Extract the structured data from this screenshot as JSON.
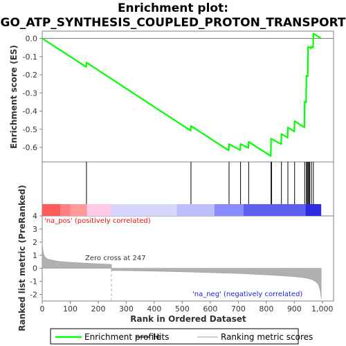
{
  "chart_data": {
    "type": "line",
    "title_line1": "Enrichment plot:",
    "title_line2": "GO_ATP_SYNTHESIS_COUPLED_PROTON_TRANSPORT",
    "es_panel": {
      "ylabel": "Enrichment score (ES)",
      "ylim": [
        -0.68,
        0.04
      ],
      "yticks": [
        0.0,
        -0.1,
        -0.2,
        -0.3,
        -0.4,
        -0.5,
        -0.6
      ],
      "ytick_labels": [
        "0.0",
        "-0.1",
        "-0.2",
        "-0.3",
        "-0.4",
        "-0.5",
        "-0.6"
      ],
      "series": [
        {
          "name": "Enrichment profile",
          "color": "#00ff00",
          "x": [
            0,
            157,
            158,
            530,
            531,
            666,
            667,
            707,
            708,
            736,
            737,
            816,
            817,
            853,
            854,
            876,
            877,
            900,
            901,
            936,
            937,
            942,
            943,
            948,
            949,
            953,
            954,
            960,
            961,
            967,
            968,
            996
          ],
          "y": [
            0.0,
            -0.157,
            -0.133,
            -0.508,
            -0.482,
            -0.617,
            -0.582,
            -0.615,
            -0.581,
            -0.603,
            -0.569,
            -0.648,
            -0.552,
            -0.582,
            -0.526,
            -0.546,
            -0.49,
            -0.513,
            -0.455,
            -0.49,
            -0.348,
            -0.352,
            -0.205,
            -0.208,
            -0.047,
            -0.05,
            -0.047,
            -0.055,
            -0.045,
            -0.05,
            0.027,
            0.0
          ]
        }
      ]
    },
    "hits": {
      "name": "Hits",
      "color": "#000000",
      "positions": [
        158,
        531,
        667,
        708,
        737,
        817,
        819,
        854,
        877,
        901,
        937,
        943,
        946,
        949,
        952,
        955,
        961,
        968
      ]
    },
    "ranking_bar": {
      "segments": [
        {
          "from": 0,
          "to": 65,
          "color": "#ff5a5a"
        },
        {
          "from": 65,
          "to": 100,
          "color": "#ff7e7e"
        },
        {
          "from": 100,
          "to": 160,
          "color": "#ff9a9a"
        },
        {
          "from": 160,
          "to": 247,
          "color": "#ffc8e6"
        },
        {
          "from": 247,
          "to": 480,
          "color": "#d6d6ff"
        },
        {
          "from": 480,
          "to": 615,
          "color": "#bebeff"
        },
        {
          "from": 615,
          "to": 718,
          "color": "#8a8aff"
        },
        {
          "from": 718,
          "to": 940,
          "color": "#6060f0"
        },
        {
          "from": 940,
          "to": 996,
          "color": "#2a2ae0"
        }
      ]
    },
    "metric_panel": {
      "ylabel": "Ranked list metric (PreRanked)",
      "ylim": [
        -2.5,
        4.0
      ],
      "yticks": [
        4,
        3,
        2,
        1,
        0,
        -1,
        -2
      ],
      "ytick_labels": [
        "4",
        "3",
        "2",
        "1",
        "0",
        "-1",
        "-2"
      ],
      "xlabel": "Rank in Ordered Dataset",
      "xlim": [
        0,
        1040
      ],
      "xticks": [
        0,
        100,
        200,
        300,
        400,
        500,
        600,
        700,
        800,
        900,
        1000
      ],
      "xtick_labels": [
        "0",
        "100",
        "200",
        "300",
        "400",
        "500",
        "600",
        "700",
        "800",
        "900",
        "1,000"
      ],
      "series": [
        {
          "name": "Ranking metric scores",
          "color": "#b0b0b0",
          "x": [
            0,
            2,
            5,
            10,
            20,
            40,
            60,
            100,
            150,
            200,
            246,
            247,
            300,
            400,
            500,
            600,
            700,
            800,
            850,
            900,
            930,
            950,
            965,
            975,
            985,
            990,
            994,
            996
          ],
          "y": [
            2.0,
            1.4,
            1.1,
            0.85,
            0.7,
            0.6,
            0.52,
            0.46,
            0.4,
            0.34,
            0.3,
            -0.17,
            -0.18,
            -0.22,
            -0.27,
            -0.33,
            -0.4,
            -0.5,
            -0.56,
            -0.64,
            -0.7,
            -0.78,
            -0.88,
            -1.0,
            -1.2,
            -1.5,
            -1.9,
            -2.3
          ]
        }
      ],
      "zero_cross_label": "Zero cross at 247",
      "zero_cross_rank": 247,
      "pos_label": "'na_pos' (positively correlated)",
      "neg_label": "'na_neg' (negatively correlated)"
    },
    "legend": {
      "placement": "bottom",
      "items": [
        {
          "label": "Enrichment profile",
          "color": "#00ff00"
        },
        {
          "label": "Hits",
          "color": "#000000"
        },
        {
          "label": "Ranking metric scores",
          "color": "#b0b0b0"
        }
      ]
    }
  }
}
